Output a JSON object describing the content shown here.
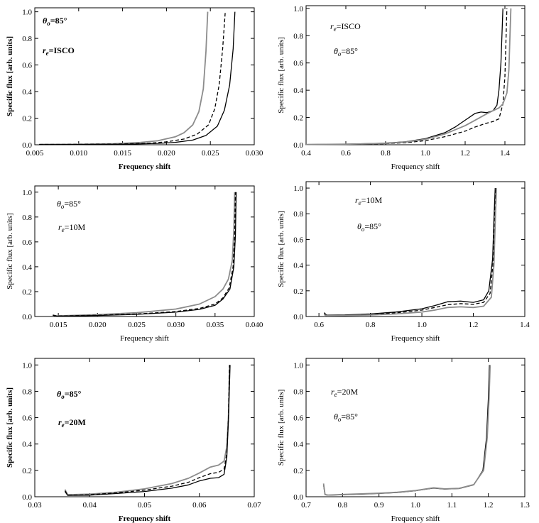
{
  "chart_data": [
    {
      "type": "line",
      "bold": true,
      "xlabel": "Frequency shift",
      "ylabel": "Specific flux [arb. units]",
      "xlim": [
        0.005,
        0.03
      ],
      "ylim": [
        0,
        1.03
      ],
      "xticks": [
        0.005,
        0.01,
        0.015,
        0.02,
        0.025,
        0.03
      ],
      "xtick_labels": [
        "0.005",
        "0.010",
        "0.015",
        "0.020",
        "0.025",
        "0.030"
      ],
      "yticks": [
        0,
        0.2,
        0.4,
        0.6,
        0.8,
        1.0
      ],
      "ytick_labels": [
        "0.0",
        "0.2",
        "0.4",
        "0.6",
        "0.8",
        "1.0"
      ],
      "annotations": [
        {
          "sym": "θ",
          "sub": "o",
          "rest": "=85°"
        },
        {
          "sym": "r",
          "sub": "e",
          "rest": "=ISCO"
        }
      ],
      "series": [
        {
          "style": "gray",
          "x": [
            0.0055,
            0.01,
            0.014,
            0.017,
            0.019,
            0.021,
            0.022,
            0.023,
            0.0237,
            0.0242,
            0.0245,
            0.0247
          ],
          "y": [
            0.003,
            0.004,
            0.008,
            0.017,
            0.03,
            0.06,
            0.09,
            0.15,
            0.25,
            0.42,
            0.7,
            1.0
          ]
        },
        {
          "style": "dashed",
          "x": [
            0.0055,
            0.01,
            0.015,
            0.018,
            0.02,
            0.022,
            0.0235,
            0.0248,
            0.0255,
            0.026,
            0.0264,
            0.0267
          ],
          "y": [
            0.002,
            0.003,
            0.006,
            0.012,
            0.022,
            0.043,
            0.08,
            0.15,
            0.27,
            0.45,
            0.72,
            1.0
          ]
        },
        {
          "style": "solid",
          "x": [
            0.0055,
            0.01,
            0.015,
            0.019,
            0.021,
            0.023,
            0.0245,
            0.0258,
            0.0266,
            0.0272,
            0.0276,
            0.0278
          ],
          "y": [
            0.001,
            0.002,
            0.004,
            0.01,
            0.018,
            0.035,
            0.07,
            0.14,
            0.26,
            0.45,
            0.72,
            1.0
          ]
        }
      ]
    },
    {
      "type": "line",
      "bold": false,
      "xlabel": "Frequency shift",
      "ylabel": "Specific flux [arb. units]",
      "xlim": [
        0.4,
        1.5
      ],
      "ylim": [
        0,
        1.02
      ],
      "xticks": [
        0.4,
        0.6,
        0.8,
        1.0,
        1.2,
        1.4
      ],
      "xtick_labels": [
        "0.4",
        "0.6",
        "0.8",
        "1.0",
        "1.2",
        "1.4"
      ],
      "yticks": [
        0,
        0.2,
        0.4,
        0.6,
        0.8,
        1.0
      ],
      "ytick_labels": [
        "0.0",
        "0.2",
        "0.4",
        "0.6",
        "0.8",
        "1.0"
      ],
      "annotations": [
        {
          "sym": "r",
          "sub": "e",
          "rest": "=ISCO"
        },
        {
          "sym": "θ",
          "sub": "o",
          "rest": "=85°"
        }
      ],
      "series": [
        {
          "style": "solid",
          "x": [
            0.4,
            0.6,
            0.8,
            0.9,
            1.0,
            1.1,
            1.15,
            1.2,
            1.25,
            1.28,
            1.31,
            1.34,
            1.36,
            1.37,
            1.38,
            1.385,
            1.39
          ],
          "y": [
            0.002,
            0.004,
            0.012,
            0.022,
            0.045,
            0.09,
            0.13,
            0.18,
            0.23,
            0.24,
            0.235,
            0.25,
            0.29,
            0.4,
            0.6,
            0.8,
            1.0
          ]
        },
        {
          "style": "dashed",
          "x": [
            0.4,
            0.6,
            0.8,
            0.9,
            1.0,
            1.1,
            1.2,
            1.25,
            1.3,
            1.34,
            1.37,
            1.39,
            1.4,
            1.405,
            1.41
          ],
          "y": [
            0.001,
            0.003,
            0.008,
            0.015,
            0.03,
            0.06,
            0.1,
            0.13,
            0.155,
            0.17,
            0.19,
            0.3,
            0.5,
            0.75,
            1.0
          ]
        },
        {
          "style": "gray",
          "x": [
            0.4,
            0.6,
            0.8,
            0.9,
            1.0,
            1.1,
            1.2,
            1.25,
            1.3,
            1.34,
            1.37,
            1.39,
            1.41,
            1.42,
            1.425,
            1.43
          ],
          "y": [
            0.002,
            0.004,
            0.01,
            0.02,
            0.04,
            0.08,
            0.14,
            0.18,
            0.22,
            0.25,
            0.27,
            0.3,
            0.38,
            0.55,
            0.78,
            1.0
          ]
        }
      ]
    },
    {
      "type": "line",
      "bold": false,
      "xlabel": "Frequency shift",
      "ylabel": "Specific flux [arb. units]",
      "xlim": [
        0.012,
        0.04
      ],
      "ylim": [
        0,
        1.05
      ],
      "xticks": [
        0.015,
        0.02,
        0.025,
        0.03,
        0.035,
        0.04
      ],
      "xtick_labels": [
        "0.015",
        "0.020",
        "0.025",
        "0.030",
        "0.035",
        "0.040"
      ],
      "yticks": [
        0,
        0.2,
        0.4,
        0.6,
        0.8,
        1.0
      ],
      "ytick_labels": [
        "0.0",
        "0.2",
        "0.4",
        "0.6",
        "0.8",
        "1.0"
      ],
      "annotations": [
        {
          "sym": "θ",
          "sub": "o",
          "rest": "=85°"
        },
        {
          "sym": "r",
          "sub": "e",
          "rest": "=10M"
        }
      ],
      "series": [
        {
          "style": "gray",
          "x": [
            0.0143,
            0.0148,
            0.02,
            0.025,
            0.03,
            0.033,
            0.035,
            0.036,
            0.0367,
            0.0372,
            0.0374,
            0.0375
          ],
          "y": [
            0.01,
            0.005,
            0.015,
            0.03,
            0.06,
            0.1,
            0.16,
            0.22,
            0.3,
            0.45,
            0.7,
            1.0
          ]
        },
        {
          "style": "dashed",
          "x": [
            0.0143,
            0.0148,
            0.02,
            0.025,
            0.03,
            0.033,
            0.035,
            0.036,
            0.0368,
            0.0373,
            0.0375,
            0.0376
          ],
          "y": [
            0.01,
            0.004,
            0.01,
            0.02,
            0.04,
            0.065,
            0.1,
            0.15,
            0.23,
            0.4,
            0.65,
            1.0
          ]
        },
        {
          "style": "solid",
          "x": [
            0.0143,
            0.0148,
            0.02,
            0.025,
            0.03,
            0.033,
            0.035,
            0.036,
            0.0369,
            0.0374,
            0.0376,
            0.0377
          ],
          "y": [
            0.012,
            0.003,
            0.008,
            0.017,
            0.035,
            0.057,
            0.09,
            0.14,
            0.22,
            0.4,
            0.65,
            1.0
          ]
        }
      ]
    },
    {
      "type": "line",
      "bold": false,
      "xlabel": "Frequency shift",
      "ylabel": "Specific flux [arb. units]",
      "xlim": [
        0.55,
        1.4
      ],
      "ylim": [
        0,
        1.05
      ],
      "xticks": [
        0.6,
        0.8,
        1.0,
        1.2,
        1.4
      ],
      "xtick_labels": [
        "0.6",
        "0.8",
        "1.0",
        "1.2",
        "1.4"
      ],
      "yticks": [
        0,
        0.2,
        0.4,
        0.6,
        0.8,
        1.0
      ],
      "ytick_labels": [
        "0.0",
        "0.2",
        "0.4",
        "0.6",
        "0.8",
        "1.0"
      ],
      "annotations": [
        {
          "sym": "r",
          "sub": "e",
          "rest": "=10M"
        },
        {
          "sym": "θ",
          "sub": "o",
          "rest": "=85°"
        }
      ],
      "series": [
        {
          "style": "solid",
          "x": [
            0.62,
            0.63,
            0.7,
            0.8,
            0.9,
            1.0,
            1.05,
            1.1,
            1.15,
            1.2,
            1.24,
            1.26,
            1.275,
            1.28,
            1.285
          ],
          "y": [
            0.03,
            0.01,
            0.012,
            0.02,
            0.035,
            0.06,
            0.085,
            0.115,
            0.12,
            0.11,
            0.13,
            0.2,
            0.45,
            0.75,
            1.0
          ]
        },
        {
          "style": "dashed",
          "x": [
            0.62,
            0.63,
            0.7,
            0.8,
            0.9,
            1.0,
            1.05,
            1.1,
            1.15,
            1.2,
            1.24,
            1.265,
            1.277,
            1.282,
            1.287
          ],
          "y": [
            0.02,
            0.008,
            0.01,
            0.016,
            0.028,
            0.05,
            0.07,
            0.092,
            0.1,
            0.095,
            0.11,
            0.18,
            0.42,
            0.73,
            1.0
          ]
        },
        {
          "style": "gray",
          "x": [
            0.62,
            0.63,
            0.7,
            0.8,
            0.9,
            1.0,
            1.05,
            1.1,
            1.15,
            1.2,
            1.24,
            1.27,
            1.28,
            1.285,
            1.29
          ],
          "y": [
            0.015,
            0.006,
            0.008,
            0.012,
            0.02,
            0.035,
            0.05,
            0.07,
            0.075,
            0.07,
            0.08,
            0.15,
            0.4,
            0.72,
            1.0
          ]
        }
      ]
    },
    {
      "type": "line",
      "bold": true,
      "xlabel": "Frequency shift",
      "ylabel": "Specific flux [arb. units]",
      "xlim": [
        0.03,
        0.07
      ],
      "ylim": [
        0,
        1.05
      ],
      "xticks": [
        0.03,
        0.04,
        0.05,
        0.06,
        0.07
      ],
      "xtick_labels": [
        "0.03",
        "0.04",
        "0.05",
        "0.06",
        "0.07"
      ],
      "yticks": [
        0,
        0.2,
        0.4,
        0.6,
        0.8,
        1.0
      ],
      "ytick_labels": [
        "0.0",
        "0.2",
        "0.4",
        "0.6",
        "0.8",
        "1.0"
      ],
      "annotations": [
        {
          "sym": "θ",
          "sub": "o",
          "rest": "=85°"
        },
        {
          "sym": "r",
          "sub": "e",
          "rest": "=20M"
        }
      ],
      "series": [
        {
          "style": "gray",
          "x": [
            0.0355,
            0.036,
            0.04,
            0.045,
            0.05,
            0.055,
            0.058,
            0.06,
            0.062,
            0.0635,
            0.0645,
            0.065,
            0.0653,
            0.0655
          ],
          "y": [
            0.055,
            0.015,
            0.02,
            0.035,
            0.06,
            0.1,
            0.14,
            0.18,
            0.225,
            0.24,
            0.27,
            0.38,
            0.62,
            1.0
          ]
        },
        {
          "style": "dashed",
          "x": [
            0.0355,
            0.036,
            0.04,
            0.045,
            0.05,
            0.055,
            0.058,
            0.06,
            0.062,
            0.0635,
            0.0645,
            0.065,
            0.0653,
            0.0655
          ],
          "y": [
            0.045,
            0.012,
            0.015,
            0.03,
            0.05,
            0.08,
            0.11,
            0.145,
            0.175,
            0.185,
            0.21,
            0.33,
            0.6,
            1.0
          ]
        },
        {
          "style": "solid",
          "x": [
            0.0355,
            0.036,
            0.04,
            0.045,
            0.05,
            0.055,
            0.058,
            0.06,
            0.062,
            0.0635,
            0.0645,
            0.065,
            0.0653,
            0.0656
          ],
          "y": [
            0.04,
            0.01,
            0.012,
            0.025,
            0.04,
            0.065,
            0.09,
            0.12,
            0.14,
            0.145,
            0.17,
            0.3,
            0.58,
            1.0
          ]
        }
      ]
    },
    {
      "type": "line",
      "bold": false,
      "xlabel": "Frequency shift",
      "ylabel": "Specific flux [arb. units]",
      "xlim": [
        0.7,
        1.3
      ],
      "ylim": [
        0,
        1.05
      ],
      "xticks": [
        0.7,
        0.8,
        0.9,
        1.0,
        1.1,
        1.2,
        1.3
      ],
      "xtick_labels": [
        "0.7",
        "0.8",
        "0.9",
        "1.0",
        "1.1",
        "1.2",
        "1.3"
      ],
      "yticks": [
        0,
        0.2,
        0.4,
        0.6,
        0.8,
        1.0
      ],
      "ytick_labels": [
        "0.0",
        "0.2",
        "0.4",
        "0.6",
        "0.8",
        "1.0"
      ],
      "annotations": [
        {
          "sym": "r",
          "sub": "e",
          "rest": "=20M"
        },
        {
          "sym": "θ",
          "sub": "o",
          "rest": "=85°"
        }
      ],
      "series": [
        {
          "style": "solid",
          "x": [
            0.748,
            0.752,
            0.76,
            0.8,
            0.85,
            0.9,
            0.95,
            1.0,
            1.03,
            1.05,
            1.08,
            1.12,
            1.16,
            1.185,
            1.195,
            1.2,
            1.203
          ],
          "y": [
            0.09,
            0.015,
            0.012,
            0.015,
            0.02,
            0.025,
            0.032,
            0.045,
            0.058,
            0.065,
            0.058,
            0.062,
            0.09,
            0.2,
            0.45,
            0.75,
            1.0
          ]
        },
        {
          "style": "gray",
          "x": [
            0.748,
            0.752,
            0.76,
            0.8,
            0.85,
            0.9,
            0.95,
            1.0,
            1.03,
            1.05,
            1.08,
            1.12,
            1.16,
            1.187,
            1.197,
            1.202,
            1.205
          ],
          "y": [
            0.1,
            0.017,
            0.013,
            0.017,
            0.022,
            0.027,
            0.034,
            0.047,
            0.06,
            0.068,
            0.06,
            0.064,
            0.092,
            0.2,
            0.45,
            0.75,
            1.0
          ]
        }
      ]
    }
  ]
}
